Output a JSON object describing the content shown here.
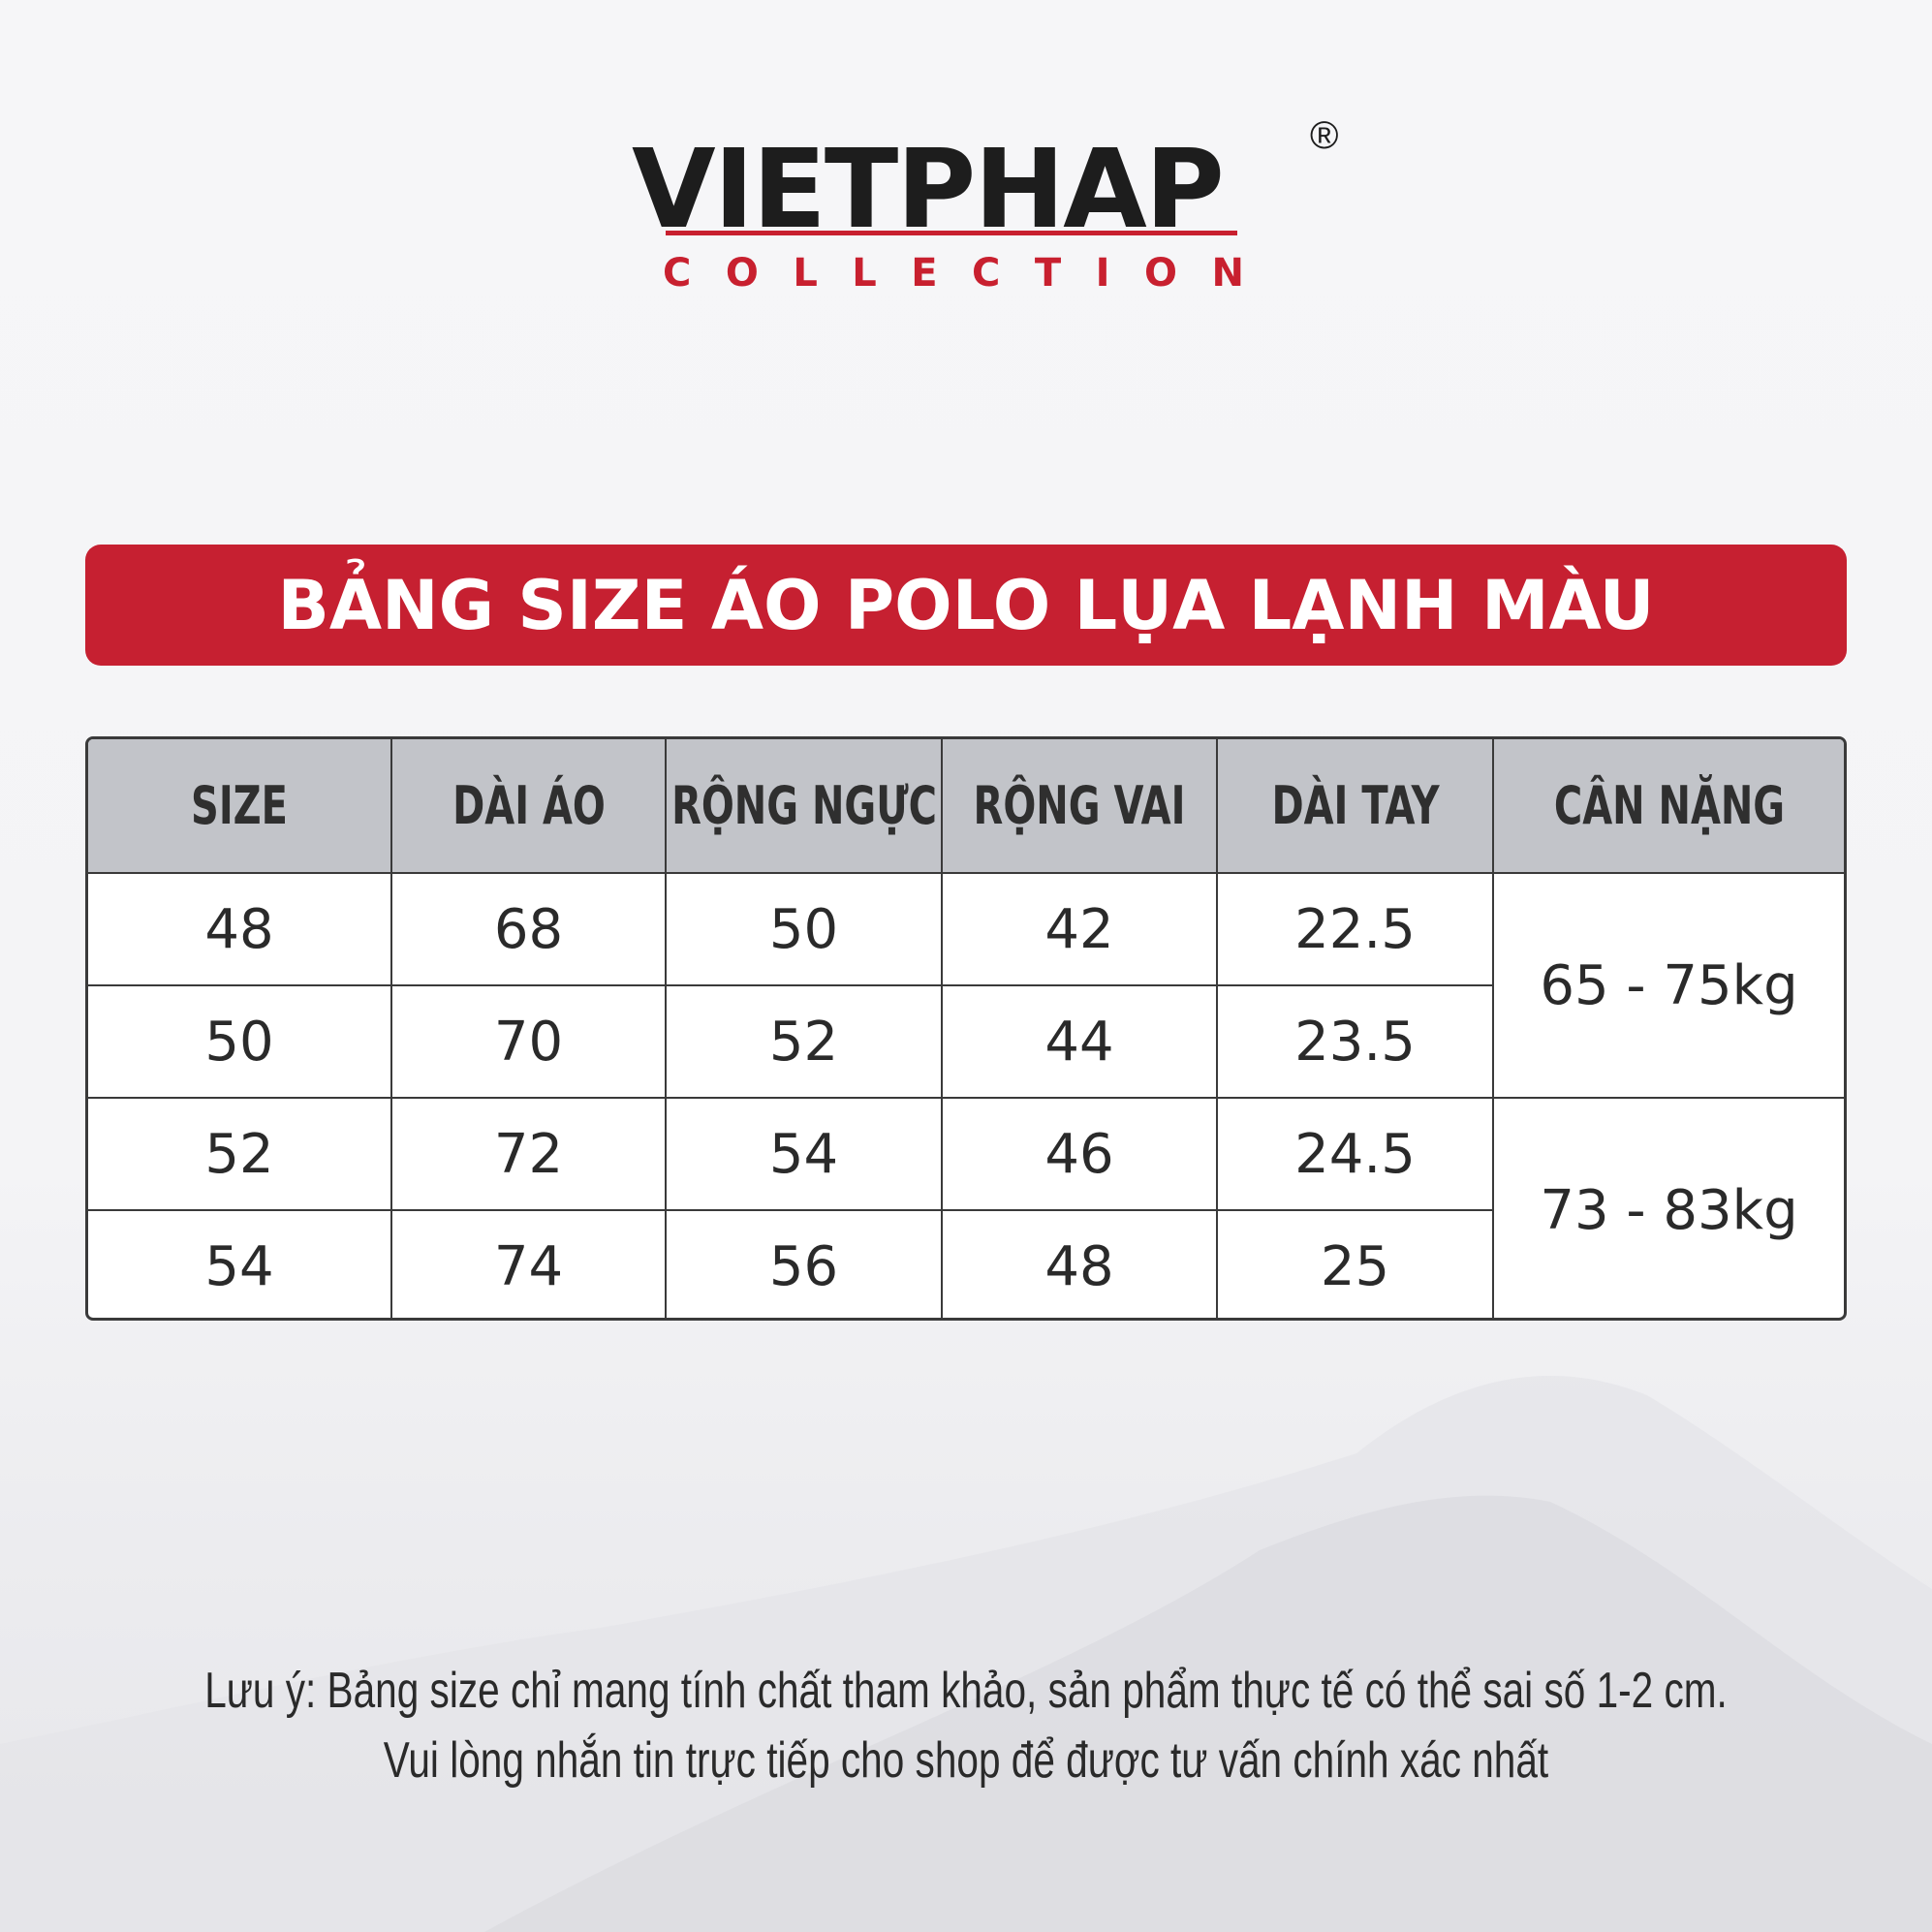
{
  "brand": {
    "name": "VIETPHAP",
    "sub_letters": [
      "C",
      "O",
      "L",
      "L",
      "E",
      "C",
      "T",
      "I",
      "O",
      "N"
    ],
    "registered": "®",
    "accent": "#c8202f"
  },
  "title": "BẢNG SIZE ÁO POLO LỤA LẠNH MÀU",
  "table": {
    "headers": [
      "SIZE",
      "DÀI ÁO",
      "RỘNG NGỰC",
      "RỘNG VAI",
      "DÀI TAY",
      "CÂN NẶNG"
    ],
    "rows": [
      [
        "48",
        "68",
        "50",
        "42",
        "22.5"
      ],
      [
        "50",
        "70",
        "52",
        "44",
        "23.5"
      ],
      [
        "52",
        "72",
        "54",
        "46",
        "24.5"
      ],
      [
        "54",
        "74",
        "56",
        "48",
        "25"
      ]
    ],
    "weights": [
      "65 - 75kg",
      "73 - 83kg"
    ]
  },
  "note": {
    "line1": "Lưu ý: Bảng size chỉ mang tính chất tham khảo, sản phẩm thực tế có thể sai số 1-2 cm.",
    "line2": "Vui lòng nhắn tin trực tiếp cho shop để được tư vấn chính xác nhất"
  }
}
